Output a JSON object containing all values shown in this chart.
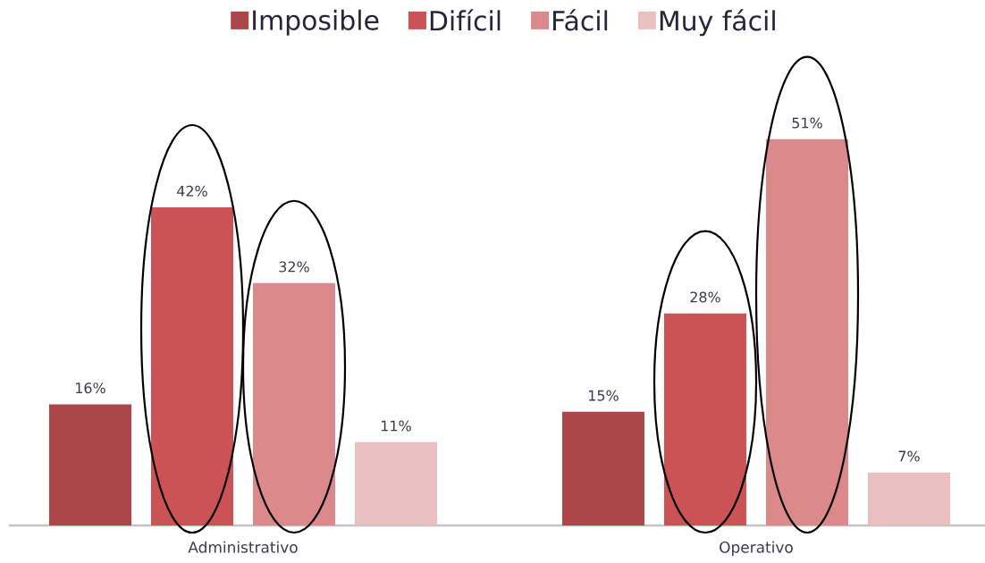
{
  "chart_data": {
    "type": "bar",
    "categories": [
      "Administrativo",
      "Operativo"
    ],
    "series": [
      {
        "name": "Imposible",
        "color": "#ad4649",
        "values": [
          16,
          15
        ],
        "value_labels": [
          "16%",
          "15%"
        ]
      },
      {
        "name": "Difícil",
        "color": "#cb5355",
        "values": [
          42,
          28
        ],
        "value_labels": [
          "42%",
          "28%"
        ]
      },
      {
        "name": "Fácil",
        "color": "#dc898b",
        "values": [
          32,
          51
        ],
        "value_labels": [
          "32%",
          "51%"
        ]
      },
      {
        "name": "Muy fácil",
        "color": "#e9bfc0",
        "values": [
          11,
          7
        ],
        "value_labels": [
          "11%",
          "7%"
        ]
      }
    ],
    "legend": "top"
  }
}
